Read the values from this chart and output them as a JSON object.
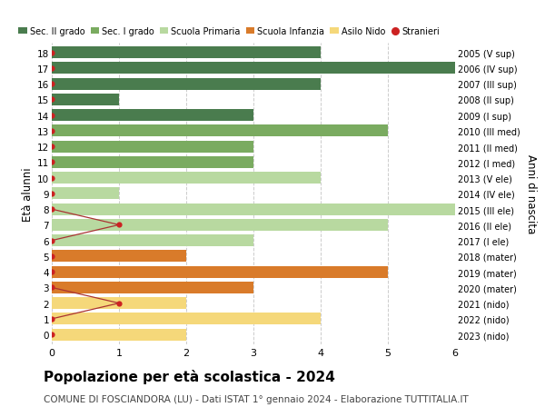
{
  "ages": [
    18,
    17,
    16,
    15,
    14,
    13,
    12,
    11,
    10,
    9,
    8,
    7,
    6,
    5,
    4,
    3,
    2,
    1,
    0
  ],
  "years": [
    "2005 (V sup)",
    "2006 (IV sup)",
    "2007 (III sup)",
    "2008 (II sup)",
    "2009 (I sup)",
    "2010 (III med)",
    "2011 (II med)",
    "2012 (I med)",
    "2013 (V ele)",
    "2014 (IV ele)",
    "2015 (III ele)",
    "2016 (II ele)",
    "2017 (I ele)",
    "2018 (mater)",
    "2019 (mater)",
    "2020 (mater)",
    "2021 (nido)",
    "2022 (nido)",
    "2023 (nido)"
  ],
  "bar_values": [
    4,
    6,
    4,
    1,
    3,
    5,
    3,
    3,
    4,
    1,
    6,
    5,
    3,
    2,
    5,
    3,
    2,
    4,
    2
  ],
  "bar_colors": [
    "#4a7c4e",
    "#4a7c4e",
    "#4a7c4e",
    "#4a7c4e",
    "#4a7c4e",
    "#7aab60",
    "#7aab60",
    "#7aab60",
    "#b8d9a0",
    "#b8d9a0",
    "#b8d9a0",
    "#b8d9a0",
    "#b8d9a0",
    "#d97b2a",
    "#d97b2a",
    "#d97b2a",
    "#f5d87a",
    "#f5d87a",
    "#f5d87a"
  ],
  "stranieri_x": [
    0,
    0,
    0,
    0,
    0,
    0,
    0,
    0,
    0,
    0,
    0,
    1,
    0,
    0,
    0,
    0,
    1,
    0,
    0
  ],
  "stranieri_lines": [
    [
      [
        0,
        8
      ],
      [
        1,
        7
      ],
      [
        0,
        6
      ]
    ],
    [
      [
        0,
        3
      ],
      [
        1,
        2
      ],
      [
        0,
        1
      ]
    ]
  ],
  "legend_labels": [
    "Sec. II grado",
    "Sec. I grado",
    "Scuola Primaria",
    "Scuola Infanzia",
    "Asilo Nido",
    "Stranieri"
  ],
  "legend_colors": [
    "#4a7c4e",
    "#7aab60",
    "#b8d9a0",
    "#d97b2a",
    "#f5d87a",
    "#cc2222"
  ],
  "title": "Popolazione per età scolastica - 2024",
  "subtitle": "COMUNE DI FOSCIANDORA (LU) - Dati ISTAT 1° gennaio 2024 - Elaborazione TUTTITALIA.IT",
  "ylabel_left": "Età alunni",
  "ylabel_right": "Anni di nascita",
  "xlim": [
    0,
    6
  ],
  "xticks": [
    0,
    1,
    2,
    3,
    4,
    5,
    6
  ],
  "background_color": "#ffffff",
  "grid_color": "#cccccc",
  "bar_height": 0.75,
  "title_fontsize": 11,
  "subtitle_fontsize": 7.5,
  "dot_markersize": 4.5
}
